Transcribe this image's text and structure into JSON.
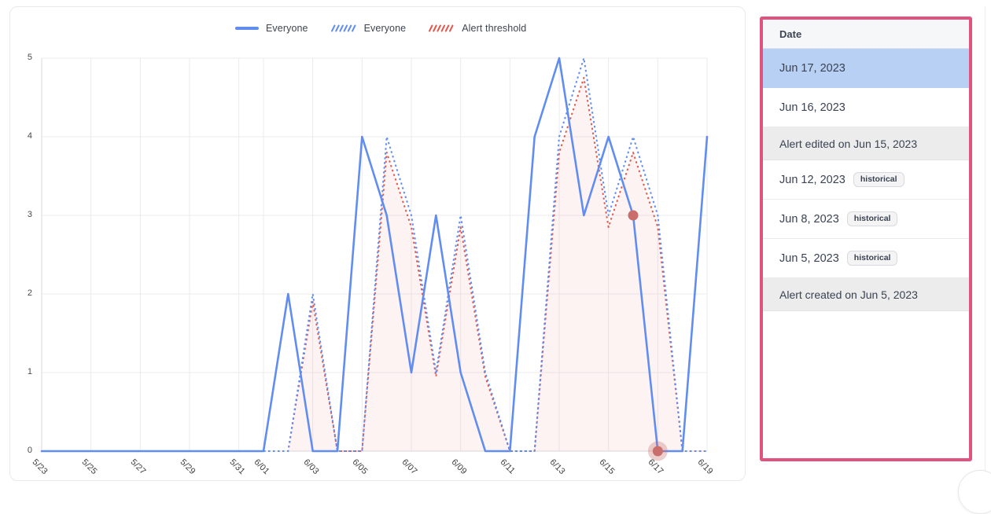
{
  "colors": {
    "series_blue": "#618DF1",
    "series_red": "#E05A50",
    "threshold_fill": "rgba(224,90,80,0.07)",
    "marker": "#C96E6A",
    "panel_border_pink": "#E0537E",
    "selected_row_blue": "#B7D0F4",
    "event_row_gray": "#ECECEC"
  },
  "legend": {
    "items": [
      {
        "label": "Everyone",
        "style": "solid",
        "color": "#618DF1"
      },
      {
        "label": "Everyone",
        "style": "dashed",
        "color": "#618DF1"
      },
      {
        "label": "Alert threshold",
        "style": "dashed",
        "color": "#E05A50"
      }
    ]
  },
  "chart_data": {
    "type": "line",
    "title": "",
    "xlabel": "",
    "ylabel": "",
    "ylim": [
      0,
      5
    ],
    "y_ticks": [
      0,
      1,
      2,
      3,
      4,
      5
    ],
    "grid": true,
    "legend_position": "top",
    "x": [
      "5/23",
      "5/24",
      "5/25",
      "5/26",
      "5/27",
      "5/28",
      "5/29",
      "5/30",
      "5/31",
      "6/01",
      "6/02",
      "6/03",
      "6/04",
      "6/05",
      "6/06",
      "6/07",
      "6/08",
      "6/09",
      "6/10",
      "6/11",
      "6/12",
      "6/13",
      "6/14",
      "6/15",
      "6/16",
      "6/17",
      "6/18",
      "6/19"
    ],
    "x_tick_day_indexes": [
      0,
      2,
      4,
      6,
      8,
      9,
      11,
      13,
      15,
      17,
      19,
      21,
      23,
      25,
      27
    ],
    "x_tick_labels": [
      "5/23",
      "5/25",
      "5/27",
      "5/29",
      "5/31",
      "6/01",
      "6/03",
      "6/05",
      "6/07",
      "6/09",
      "6/11",
      "6/13",
      "6/15",
      "6/17",
      "6/19"
    ],
    "series": [
      {
        "name": "Everyone",
        "style": "solid",
        "color": "#618DF1",
        "values": [
          0,
          0,
          0,
          0,
          0,
          0,
          0,
          0,
          0,
          0,
          2,
          0,
          0,
          4,
          3,
          1,
          3,
          1,
          0,
          0,
          4,
          5,
          3,
          4,
          3,
          0,
          0,
          4
        ]
      },
      {
        "name": "Everyone",
        "style": "dotted",
        "color": "#618DF1",
        "values": [
          0,
          0,
          0,
          0,
          0,
          0,
          0,
          0,
          0,
          0,
          0,
          2,
          0,
          0,
          4,
          3,
          1,
          3,
          1,
          0,
          0,
          4,
          5,
          3,
          4,
          3,
          0,
          0
        ]
      },
      {
        "name": "Alert threshold",
        "style": "dotted",
        "color": "#E05A50",
        "fill": "rgba(224,90,80,0.07)",
        "values": [
          0,
          0,
          0,
          0,
          0,
          0,
          0,
          0,
          0,
          0,
          0,
          1.9,
          0,
          0,
          3.8,
          2.85,
          0.95,
          2.85,
          0.95,
          0,
          0,
          3.8,
          4.75,
          2.85,
          3.8,
          2.85,
          0,
          0
        ]
      }
    ],
    "markers": [
      {
        "x": "6/16",
        "day_index": 24,
        "value": 3,
        "style": "dot"
      },
      {
        "x": "6/17",
        "day_index": 25,
        "value": 0,
        "style": "dot-halo"
      }
    ]
  },
  "sidebar": {
    "header": "Date",
    "rows": [
      {
        "label": "Jun 17, 2023",
        "type": "date",
        "selected": true
      },
      {
        "label": "Jun 16, 2023",
        "type": "date"
      },
      {
        "label": "Alert edited on Jun 15, 2023",
        "type": "event"
      },
      {
        "label": "Jun 12, 2023",
        "type": "date",
        "badge": "historical"
      },
      {
        "label": "Jun 8, 2023",
        "type": "date",
        "badge": "historical"
      },
      {
        "label": "Jun 5, 2023",
        "type": "date",
        "badge": "historical"
      },
      {
        "label": "Alert created on Jun 5, 2023",
        "type": "event"
      }
    ]
  }
}
